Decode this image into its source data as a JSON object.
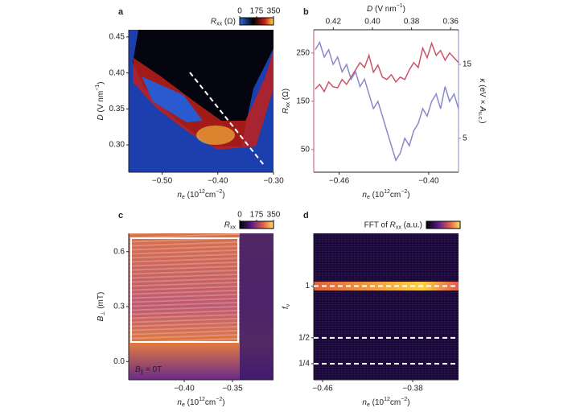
{
  "chart_data": [
    {
      "type": "heatmap",
      "panel": "a",
      "xlabel": [
        "n",
        "e",
        " (10",
        "12",
        "cm",
        "−2",
        ")"
      ],
      "ylabel": [
        "D",
        " (V nm",
        "−1",
        ")"
      ],
      "xlim": [
        -0.56,
        -0.3
      ],
      "ylim": [
        0.262,
        0.46
      ],
      "xticks": [
        {
          "value": -0.5,
          "label": "−0.50"
        },
        {
          "value": -0.4,
          "label": "−0.40"
        },
        {
          "value": -0.3,
          "label": "−0.30"
        }
      ],
      "yticks": [
        {
          "value": 0.3,
          "label": "0.30"
        },
        0.35,
        {
          "value": 0.4,
          "label": "0.40"
        },
        0.45
      ],
      "colorbar": {
        "label": [
          "R",
          "xx",
          " (Ω)"
        ],
        "lim": [
          0,
          350
        ],
        "ticks": [
          0,
          175,
          350
        ]
      }
    },
    {
      "type": "line",
      "panel": "b",
      "xlabel": [
        "n",
        "e",
        " (10",
        "12",
        "cm",
        "−2",
        ")"
      ],
      "ylabel": [
        "R",
        "xx",
        " (Ω)"
      ],
      "y2label": [
        "κ",
        " (eV × ",
        "A",
        "u.c.",
        ")"
      ],
      "x2label": [
        "D",
        " (V nm",
        "−1",
        ")"
      ],
      "xlim": [
        -0.477,
        -0.38
      ],
      "ylim": [
        3,
        298
      ],
      "y2lim": [
        0.4,
        19.7
      ],
      "x2lim": [
        0.43,
        0.356
      ],
      "xticks": [
        {
          "value": -0.46,
          "label": "−0.46"
        },
        {
          "value": -0.4,
          "label": "−0.40"
        }
      ],
      "yticks": [
        50,
        150,
        250
      ],
      "y2ticks": [
        5,
        15
      ],
      "x2ticks": [
        0.42,
        {
          "value": 0.4,
          "label": "0.40"
        },
        0.38,
        0.36
      ],
      "x": [
        -0.476,
        -0.473,
        -0.47,
        -0.467,
        -0.464,
        -0.461,
        -0.458,
        -0.455,
        -0.452,
        -0.449,
        -0.446,
        -0.443,
        -0.44,
        -0.437,
        -0.434,
        -0.431,
        -0.428,
        -0.425,
        -0.422,
        -0.419,
        -0.416,
        -0.413,
        -0.41,
        -0.407,
        -0.404,
        -0.401,
        -0.398,
        -0.395,
        -0.392,
        -0.389,
        -0.386,
        -0.383,
        -0.38
      ],
      "series": [
        {
          "name": "Rxx",
          "color": "#c9546a",
          "values": [
            175,
            185,
            170,
            190,
            180,
            178,
            195,
            185,
            200,
            215,
            230,
            220,
            245,
            210,
            225,
            200,
            195,
            205,
            190,
            200,
            195,
            215,
            230,
            220,
            260,
            240,
            270,
            245,
            255,
            235,
            250,
            240,
            230
          ]
        },
        {
          "name": "κ",
          "color": "#8a88c8",
          "axis": "y2",
          "values": [
            17,
            18,
            16,
            17,
            15,
            16,
            14,
            15,
            13,
            14,
            12,
            13,
            11,
            9,
            10,
            8,
            6,
            4,
            2,
            3,
            5,
            4,
            6,
            7,
            9,
            8,
            10,
            11,
            9,
            12,
            10,
            11,
            9
          ]
        }
      ]
    },
    {
      "type": "heatmap",
      "panel": "c",
      "xlabel": [
        "n",
        "e",
        " (10",
        "12",
        "cm",
        "−2",
        ")"
      ],
      "ylabel": [
        "B",
        "⊥",
        " (mT)"
      ],
      "xlim": [
        -0.4575,
        -0.3075
      ],
      "ylim": [
        -0.1,
        0.7
      ],
      "xticks": [
        {
          "value": -0.4,
          "label": "−0.40"
        },
        {
          "value": -0.35,
          "label": "−0.35"
        }
      ],
      "yticks": [
        {
          "value": 0,
          "label": "0.0"
        },
        0.3,
        0.6
      ],
      "annotation": [
        "B",
        "∥",
        " = 0T"
      ],
      "colorbar": {
        "label": [
          "R",
          "xx"
        ],
        "lim": [
          0,
          350
        ],
        "ticks": [
          0,
          175,
          350
        ]
      }
    },
    {
      "type": "heatmap",
      "panel": "d",
      "xlabel": [
        "n",
        "e",
        " (10",
        "12",
        "cm",
        "−2",
        ")"
      ],
      "ylabel": [
        "f",
        "ν"
      ],
      "xlim": [
        -0.4679,
        -0.3393
      ],
      "ylim": [
        0.094,
        1.51
      ],
      "xticks": [
        {
          "value": -0.46,
          "label": "−0.46"
        },
        {
          "value": -0.38,
          "label": "−0.38"
        }
      ],
      "yticks": [
        {
          "value": 0.25,
          "label": "1/4"
        },
        {
          "value": 0.5,
          "label": "1/2"
        },
        1
      ],
      "guides": true,
      "colorbar": {
        "label": [
          "FFT of ",
          "R",
          "xx",
          " (a.u.)"
        ]
      }
    }
  ]
}
